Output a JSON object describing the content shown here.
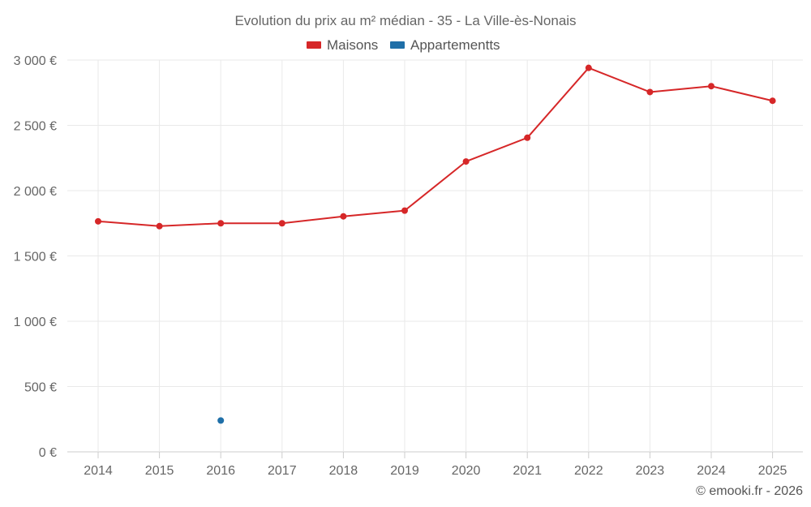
{
  "chart_data": {
    "type": "line",
    "title": "Evolution du prix au m² médian - 35 - La Ville-ès-Nonais",
    "categories": [
      "2014",
      "2015",
      "2016",
      "2017",
      "2018",
      "2019",
      "2020",
      "2021",
      "2022",
      "2023",
      "2024",
      "2025"
    ],
    "series": [
      {
        "name": "Maisons",
        "color": "#d62728",
        "values": [
          1765,
          1728,
          1750,
          1750,
          1803,
          1847,
          2223,
          2405,
          2940,
          2755,
          2800,
          2688
        ]
      },
      {
        "name": "Appartementts",
        "color": "#1f6fa8",
        "values": [
          null,
          null,
          240,
          null,
          null,
          null,
          null,
          null,
          null,
          null,
          null,
          null
        ]
      }
    ],
    "yticks": [
      0,
      500,
      1000,
      1500,
      2000,
      2500,
      3000
    ],
    "ytick_labels": [
      "0 €",
      "500 €",
      "1 000 €",
      "1 500 €",
      "2 000 €",
      "2 500 €",
      "3 000 €"
    ],
    "ylim": [
      0,
      3000
    ],
    "grid": true,
    "legend_position": "top-center"
  },
  "credit": "© emooki.fr - 2026"
}
